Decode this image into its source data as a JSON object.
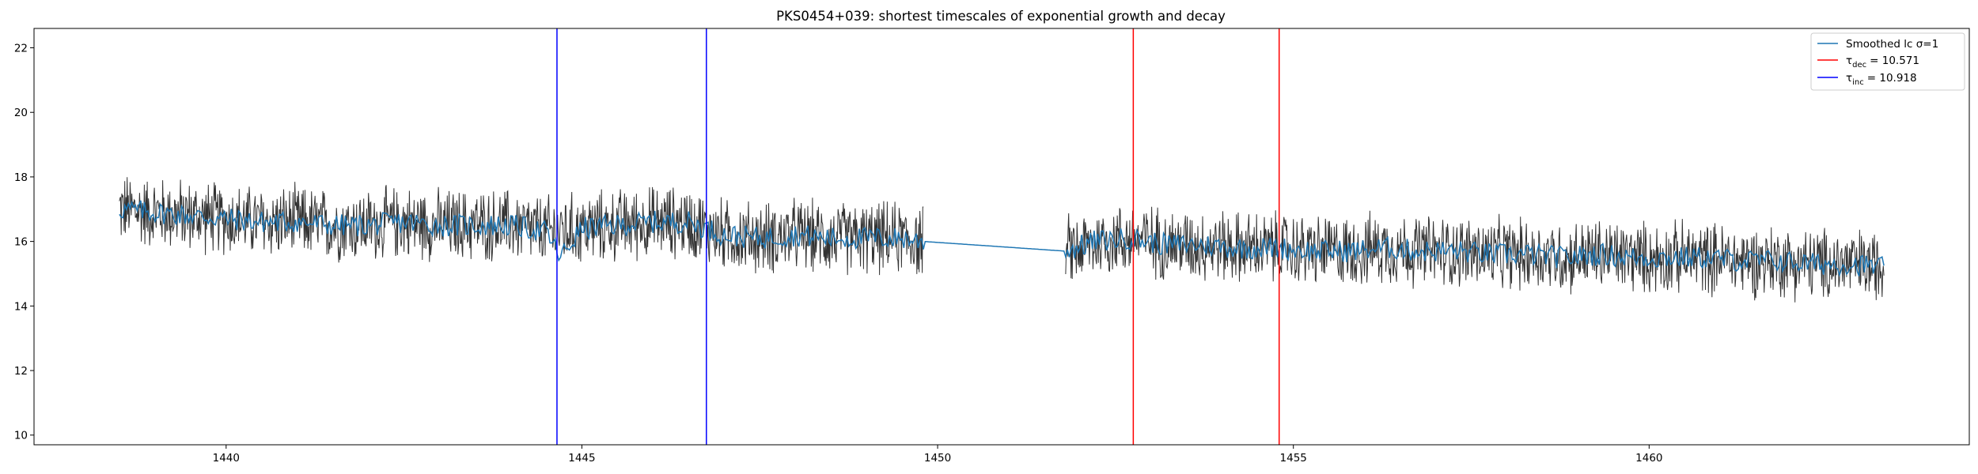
{
  "chart_data": {
    "type": "line",
    "title": "PKS0454+039: shortest timescales of exponential growth and decay",
    "xlabel": "",
    "ylabel": "",
    "xlim": [
      1437.3,
      1464.5
    ],
    "ylim": [
      9.7,
      22.6
    ],
    "xticks": [
      1440,
      1445,
      1450,
      1455,
      1460
    ],
    "yticks": [
      10,
      12,
      14,
      16,
      18,
      20,
      22
    ],
    "grid": false,
    "legend_position": "top-right",
    "legend": {
      "smoothed": {
        "label": "Smoothed lc σ=1",
        "color": "#1f77b4"
      },
      "dec": {
        "symbol": "τ",
        "subscript": "dec",
        "value": "= 10.571",
        "color": "#ff0000"
      },
      "inc": {
        "symbol": "τ",
        "subscript": "inc",
        "value": "= 10.918",
        "color": "#0000ff"
      }
    },
    "vlines": [
      {
        "name": "tau-inc-start",
        "x": 1444.65,
        "color": "#0000ff"
      },
      {
        "name": "tau-inc-end",
        "x": 1446.75,
        "color": "#0000ff"
      },
      {
        "name": "tau-dec-start",
        "x": 1452.75,
        "color": "#ff0000"
      },
      {
        "name": "tau-dec-end",
        "x": 1454.8,
        "color": "#ff0000"
      }
    ],
    "series": [
      {
        "name": "Smoothed lc σ=1",
        "color": "#1f77b4",
        "x": [
          1438.5,
          1439.0,
          1439.5,
          1440.0,
          1440.5,
          1441.0,
          1441.5,
          1442.0,
          1442.5,
          1443.0,
          1443.5,
          1444.0,
          1444.5,
          1444.7,
          1445.0,
          1445.5,
          1446.0,
          1446.5,
          1447.0,
          1447.5,
          1448.0,
          1448.5,
          1449.0,
          1449.5,
          1449.8,
          1451.8,
          1452.2,
          1452.7,
          1453.2,
          1453.7,
          1454.2,
          1454.8,
          1455.3,
          1455.8,
          1456.3,
          1456.8,
          1457.3,
          1457.8,
          1458.3,
          1458.8,
          1459.3,
          1459.8,
          1460.3,
          1460.8,
          1461.3,
          1461.8,
          1462.3,
          1462.8,
          1463.3
        ],
        "y": [
          17.0,
          16.9,
          16.8,
          16.7,
          16.6,
          16.6,
          16.5,
          16.5,
          16.6,
          16.5,
          16.5,
          16.5,
          16.3,
          15.5,
          16.4,
          16.5,
          16.6,
          16.6,
          16.2,
          16.1,
          16.2,
          16.1,
          16.1,
          16.1,
          16.0,
          15.7,
          16.0,
          16.1,
          15.9,
          15.9,
          15.8,
          15.8,
          15.7,
          15.7,
          15.8,
          15.7,
          15.7,
          15.6,
          15.6,
          15.5,
          15.6,
          15.5,
          15.5,
          15.5,
          15.4,
          15.4,
          15.3,
          15.3,
          15.2
        ]
      },
      {
        "name": "",
        "color": "#333333",
        "x": [
          1438.5,
          1439.0,
          1439.5,
          1440.0,
          1440.5,
          1441.0,
          1441.5,
          1442.0,
          1442.5,
          1443.0,
          1443.5,
          1444.0,
          1444.5,
          1445.0,
          1445.5,
          1446.0,
          1446.5,
          1447.0,
          1447.5,
          1448.0,
          1448.5,
          1449.0,
          1449.5,
          1449.8,
          1451.8,
          1452.3,
          1452.8,
          1453.3,
          1453.8,
          1454.3,
          1454.8,
          1455.3,
          1455.8,
          1456.3,
          1456.8,
          1457.3,
          1457.8,
          1458.3,
          1458.8,
          1459.3,
          1459.8,
          1460.3,
          1460.8,
          1461.3,
          1461.8,
          1462.3,
          1462.8,
          1463.3
        ],
        "y": [
          17.0,
          16.9,
          16.8,
          16.7,
          16.6,
          16.6,
          16.5,
          16.5,
          16.6,
          16.5,
          16.5,
          16.5,
          16.3,
          16.4,
          16.5,
          16.6,
          16.6,
          16.2,
          16.1,
          16.2,
          16.1,
          16.1,
          16.1,
          16.0,
          15.7,
          16.0,
          16.1,
          15.9,
          15.9,
          15.8,
          15.8,
          15.7,
          15.7,
          15.8,
          15.7,
          15.7,
          15.6,
          15.6,
          15.5,
          15.6,
          15.5,
          15.5,
          15.5,
          15.4,
          15.4,
          15.3,
          15.3,
          15.2
        ],
        "scatter_half_range": 1.3,
        "segments": [
          [
            1438.5,
            1449.8
          ],
          [
            1451.8,
            1463.3
          ]
        ]
      }
    ]
  }
}
